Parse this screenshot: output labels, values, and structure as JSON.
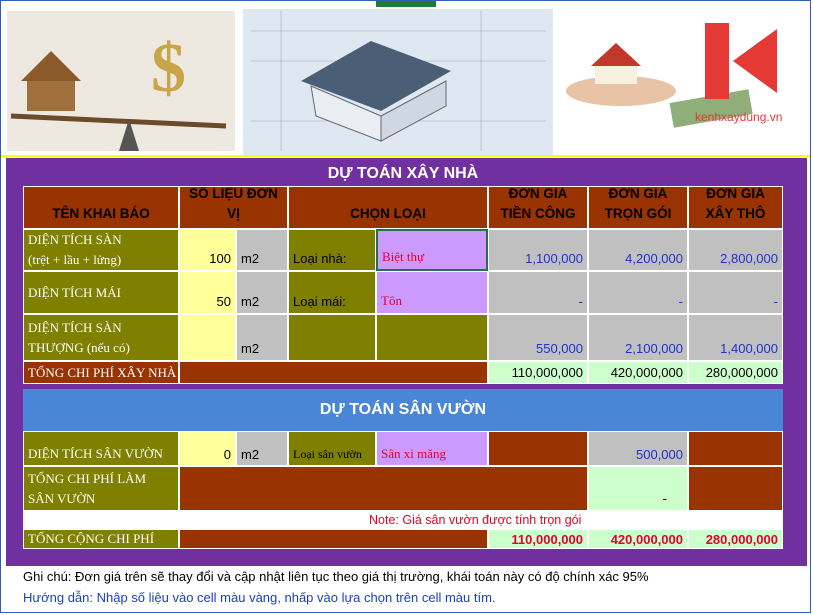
{
  "logo": "kenhxaydung.vn",
  "house": {
    "title": "DỰ TOÁN XÂY NHÀ",
    "headers": [
      "TÊN KHAI BÁO",
      "SỐ LIỆU ĐƠN VỊ",
      "CHỌN LOẠI",
      "ĐƠN GIÁ TIỀN CÔNG",
      "ĐƠN GIÁ TRỌN GÓI",
      "ĐƠN GIÁ XÂY THÔ"
    ],
    "rows": [
      {
        "label": [
          "DIỆN TÍCH SÀN",
          "(trệt + lầu + lửng)"
        ],
        "value": "100",
        "unit": "m2",
        "type_label": "Loại nhà:",
        "type_value": "Biệt thự",
        "prices": [
          "1,100,000",
          "4,200,000",
          "2,800,000"
        ]
      },
      {
        "label": [
          "DIỆN TÍCH MÁI"
        ],
        "value": "50",
        "unit": "m2",
        "type_label": "Loại mái:",
        "type_value": "Tôn",
        "prices": [
          "-",
          "-",
          "-"
        ]
      },
      {
        "label": [
          "DIỆN TÍCH SÀN",
          "THƯỢNG (nếu có)"
        ],
        "unit": "m2",
        "prices": [
          "550,000",
          "2,100,000",
          "1,400,000"
        ]
      }
    ],
    "total": {
      "label": "TỔNG CHI PHÍ XÂY NHÀ",
      "values": [
        "110,000,000",
        "420,000,000",
        "280,000,000"
      ]
    }
  },
  "garden": {
    "title": "DỰ TOÁN SÂN VƯỜN",
    "row": {
      "label": "DIỆN TÍCH SÂN VƯỜN",
      "value": "0",
      "unit": "m2",
      "type_label": "Loại sân vườn",
      "type_value": "Sân xi măng",
      "price": "500,000"
    },
    "total": {
      "label": [
        "TỔNG CHI PHÍ LÀM",
        " SÂN VƯỜN"
      ],
      "value": "-"
    },
    "note": "Note: Giá sân vườn được tính trọn gói",
    "grand_total": {
      "label": "TỔNG CỘNG CHI PHÍ",
      "values": [
        "110,000,000",
        "420,000,000",
        "280,000,000"
      ]
    }
  },
  "footer": {
    "note": "Ghi chú: Đơn giá trên sẽ thay đổi và cập nhật liên tục theo giá thị trường, khái toán này có độ chính xác 95%",
    "guide": "Hướng dẫn: Nhập số liệu vào cell màu vàng, nhấp vào lựa chọn trên cell màu tím."
  }
}
